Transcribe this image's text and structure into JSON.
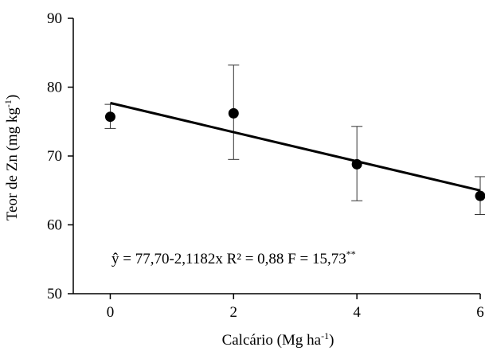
{
  "chart_data": {
    "type": "scatter",
    "x": [
      0,
      2,
      4,
      6
    ],
    "y": [
      75.7,
      76.2,
      68.8,
      64.2
    ],
    "error": {
      "upper": [
        77.5,
        83.2,
        74.3,
        67.0
      ],
      "lower": [
        74.0,
        69.5,
        63.5,
        61.5
      ]
    },
    "regression": {
      "intercept": 77.7,
      "slope": -2.1182
    },
    "xlim": [
      -0.6,
      6.0
    ],
    "ylim": [
      50,
      90
    ],
    "x_ticks": [
      "0",
      "2",
      "4",
      "6"
    ],
    "y_ticks": [
      "50",
      "60",
      "70",
      "80",
      "90"
    ],
    "xlabel": "Calcário  (Mg ha",
    "xlabel_sup": "-1",
    "xlabel_end": ")",
    "ylabel": "Teor de Zn (mg kg",
    "ylabel_sup": "-1",
    "ylabel_end": ")",
    "equation": "ŷ = 77,70-2,1182x    R² = 0,88  F = 15,73",
    "equation_sup": "**",
    "grid": false,
    "colors": {
      "marks": "#000000",
      "background": "#ffffff"
    }
  }
}
